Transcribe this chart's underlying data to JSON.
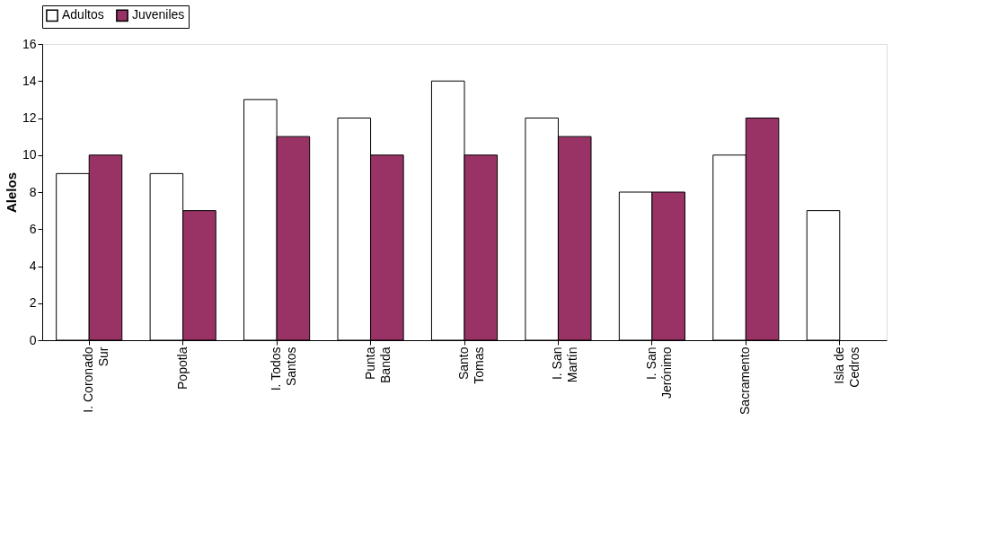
{
  "chart_data": {
    "type": "bar",
    "ylabel": "Alelos",
    "categories": [
      "I. Coronado Sur",
      "Popotla",
      "I. Todos Santos",
      "Punta Banda",
      "Santo Tomas",
      "I. San Martín",
      "I. San Jerónimo",
      "Sacramento",
      "Isla de Cedros"
    ],
    "series": [
      {
        "name": "Adultos",
        "color": "#ffffff",
        "values": [
          9,
          9,
          13,
          12,
          14,
          12,
          8,
          10,
          7
        ]
      },
      {
        "name": "Juveniles",
        "color": "#993366",
        "values": [
          10,
          7,
          11,
          10,
          10,
          11,
          8,
          12,
          null
        ]
      }
    ],
    "ylim": [
      0,
      16
    ],
    "yticks": [
      0,
      2,
      4,
      6,
      8,
      10,
      12,
      14,
      16
    ],
    "grid": false,
    "legend": "top"
  }
}
